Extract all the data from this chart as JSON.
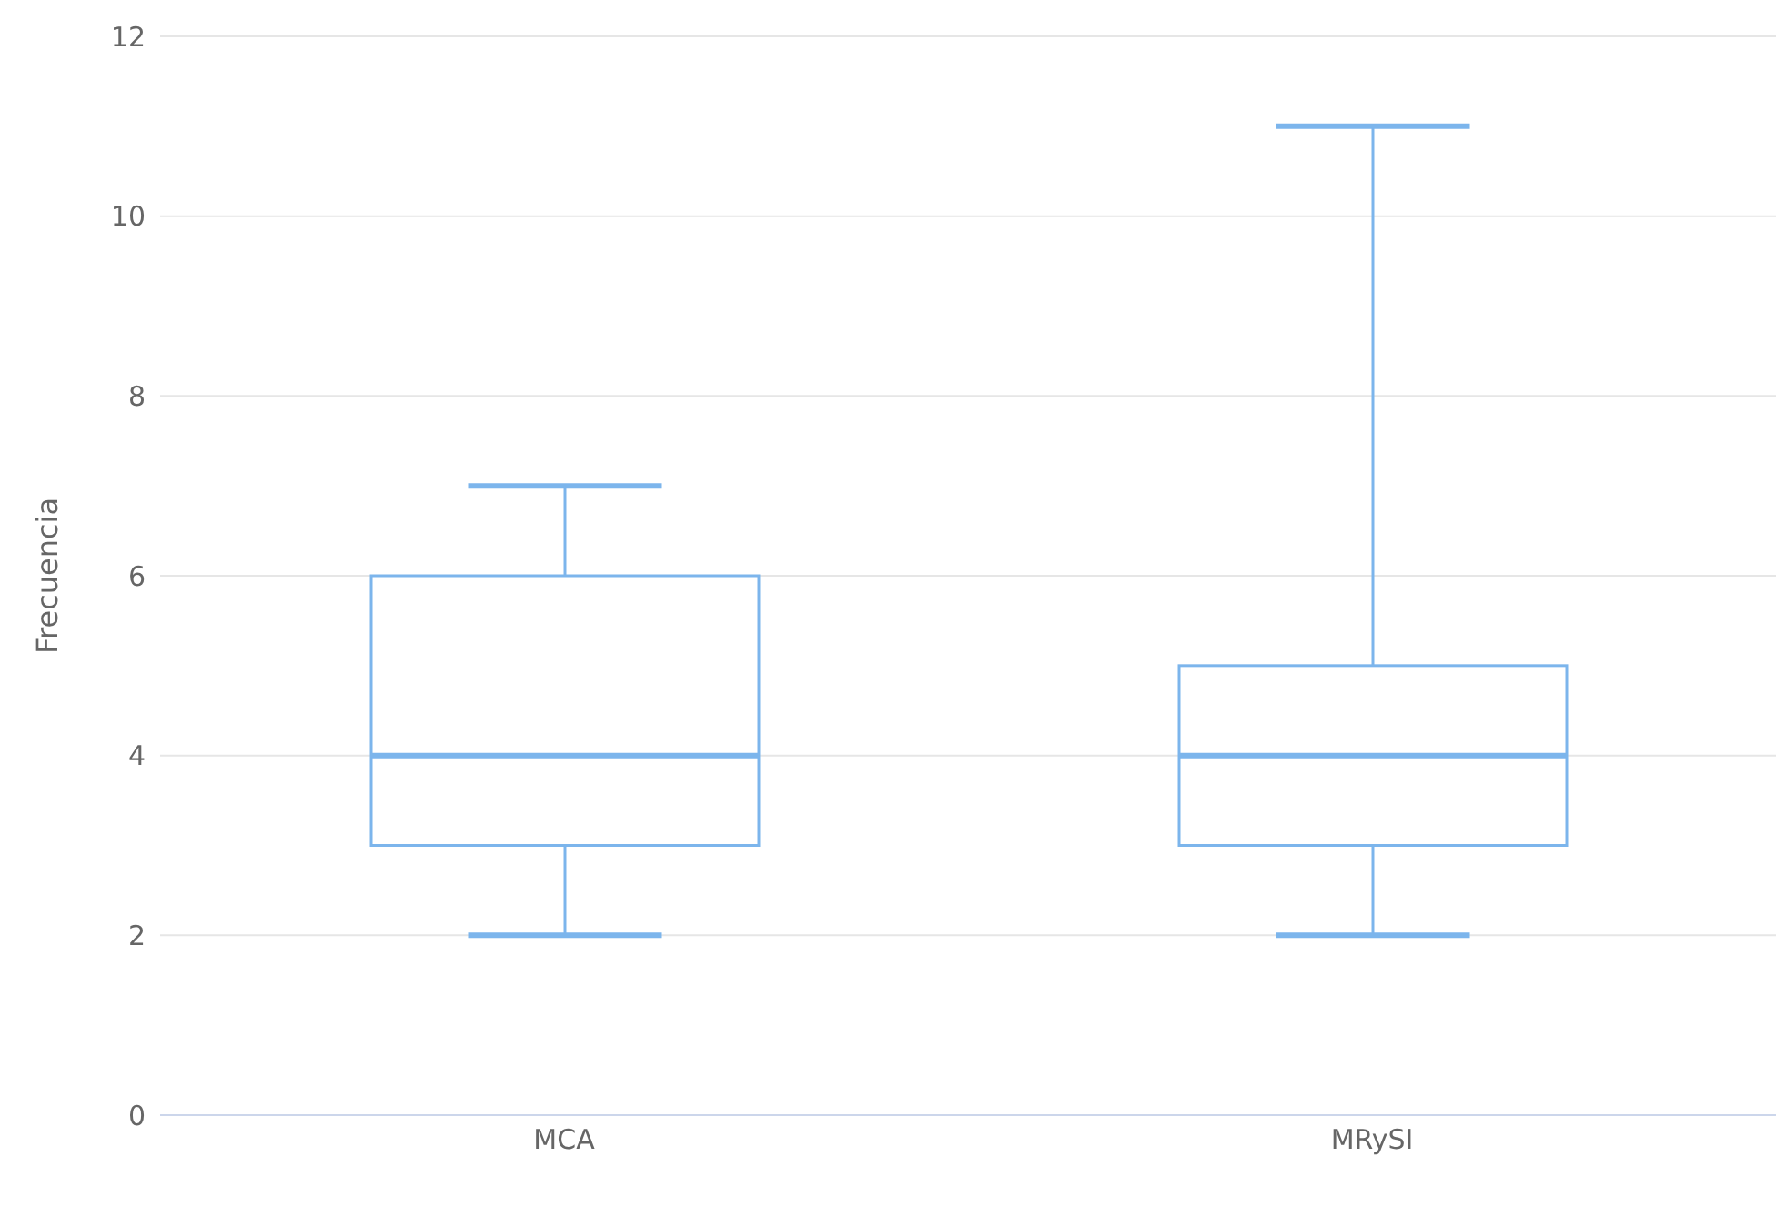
{
  "chart_data": {
    "type": "box",
    "ylabel": "Frecuencia",
    "categories": [
      "MCA",
      "MRySI"
    ],
    "boxes": [
      {
        "low": 2,
        "q1": 3,
        "median": 4,
        "q3": 6,
        "high": 7
      },
      {
        "low": 2,
        "q1": 3,
        "median": 4,
        "q3": 5,
        "high": 11
      }
    ],
    "color": "#7cb5ec",
    "ylim": [
      0,
      12
    ],
    "yticks": [
      0,
      2,
      4,
      6,
      8,
      10,
      12
    ],
    "grid": "y",
    "legend": false
  }
}
